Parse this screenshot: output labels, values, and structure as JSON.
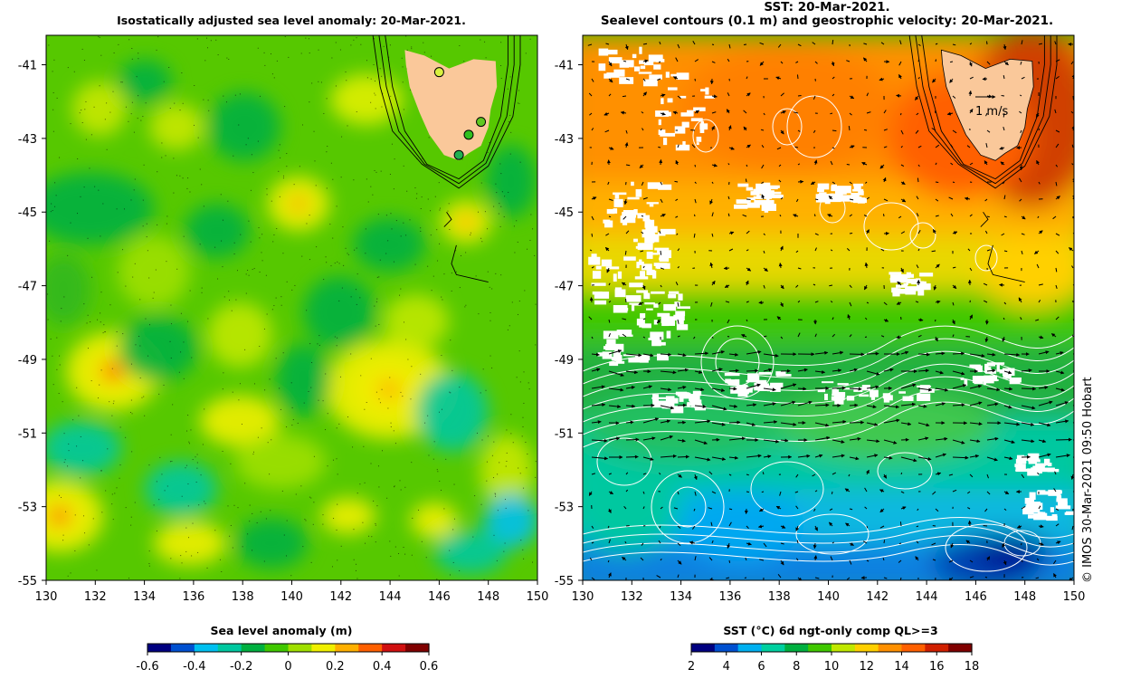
{
  "left_panel": {
    "title": "Isostatically adjusted sea level anomaly: 20-Mar-2021.",
    "colorbar_label": "Sea level anomaly (m)",
    "colorbar_ticks": [
      "-0.6",
      "-0.4",
      "-0.2",
      "0",
      "0.2",
      "0.4",
      "0.6"
    ],
    "colormap": [
      "#000080",
      "#0050d0",
      "#00c0f0",
      "#00c8a0",
      "#00b040",
      "#40c800",
      "#a0e000",
      "#f0f000",
      "#ffb000",
      "#ff6000",
      "#d01010",
      "#800000"
    ]
  },
  "right_panel": {
    "title_line1": "SST: 20-Mar-2021.",
    "title_line2": "Sealevel contours (0.1 m) and geostrophic velocity: 20-Mar-2021.",
    "colorbar_label": "SST (°C) 6d ngt-only comp QL>=3",
    "colorbar_ticks": [
      "2",
      "4",
      "6",
      "8",
      "10",
      "12",
      "14",
      "16",
      "18"
    ],
    "velocity_scale_label": "1 m/s",
    "colormap": [
      "#000080",
      "#0050d0",
      "#00b0f0",
      "#00d0a0",
      "#00b040",
      "#40c800",
      "#c0e800",
      "#ffd000",
      "#ff9000",
      "#ff6000",
      "#d02000",
      "#800000"
    ]
  },
  "credit": "©  IMOS 30-Mar-2021 09:50 Hobart",
  "map_axes": {
    "x_ticks": [
      "130",
      "132",
      "134",
      "136",
      "138",
      "140",
      "142",
      "144",
      "146",
      "148",
      "150"
    ],
    "y_ticks": [
      "-41",
      "-43",
      "-45",
      "-47",
      "-49",
      "-51",
      "-53",
      "-55"
    ],
    "lon_range": [
      130,
      150
    ],
    "lat_range": [
      -55,
      -40.2
    ]
  },
  "land_color": "#fac89a",
  "cloud_color": "#ffffff",
  "tide_gauge_sites": [
    {
      "lon": 146.0,
      "lat": -41.2,
      "color": "#d8f040"
    },
    {
      "lon": 147.2,
      "lat": -42.9,
      "color": "#30c020"
    },
    {
      "lon": 147.7,
      "lat": -42.55,
      "color": "#60c820"
    },
    {
      "lon": 146.8,
      "lat": -43.45,
      "color": "#20b050"
    }
  ]
}
